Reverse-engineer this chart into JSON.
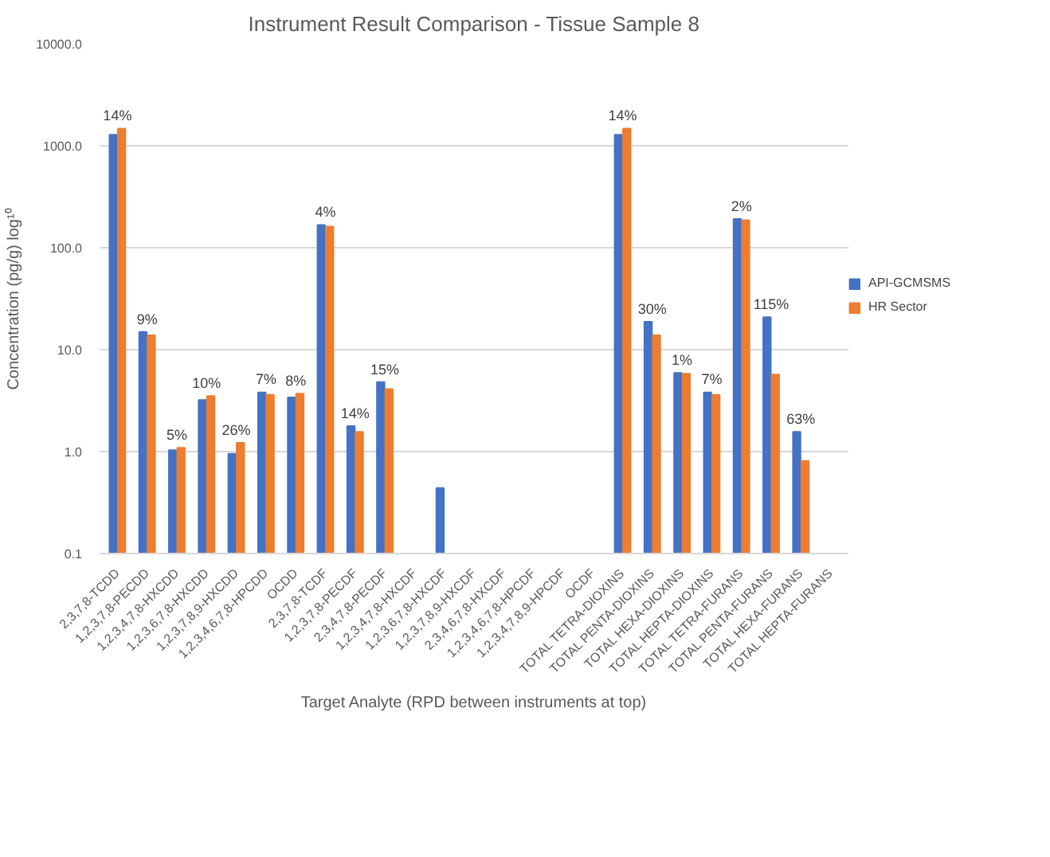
{
  "chart_data": {
    "type": "bar",
    "title": "Instrument Result Comparison - Tissue Sample 8",
    "xlabel": "Target Analyte (RPD between instruments at top)",
    "ylabel": "Concentration (pg/g) log¹⁰",
    "categories": [
      "2,3,7,8-TCDD",
      "1,2,3,7,8-PECDD",
      "1,2,3,4,7,8-HXCDD",
      "1,2,3,6,7,8-HXCDD",
      "1,2,3,7,8,9-HXCDD",
      "1,2,3,4,6,7,8-HPCDD",
      "OCDD",
      "2,3,7,8-TCDF",
      "1,2,3,7,8-PECDF",
      "2,3,4,7,8-PECDF",
      "1,2,3,4,7,8-HXCDF",
      "1,2,3,6,7,8-HXCDF",
      "1,2,3,7,8,9-HXCDF",
      "2,3,4,6,7,8-HXCDF",
      "1,2,3,4,6,7,8-HPCDF",
      "1,2,3,4,7,8,9-HPCDF",
      "OCDF",
      "TOTAL TETRA-DIOXINS",
      "TOTAL PENTA-DIOXINS",
      "TOTAL HEXA-DIOXINS",
      "TOTAL HEPTA-DIOXINS",
      "TOTAL TETRA-FURANS",
      "TOTAL PENTA-FURANS",
      "TOTAL HEXA-FURANS",
      "TOTAL HEPTA-FURANS"
    ],
    "series": [
      {
        "name": "API-GCMSMS",
        "color": "#4472c4",
        "values": [
          1280,
          14.9,
          1.03,
          3.2,
          0.95,
          3.8,
          3.4,
          167,
          1.78,
          4.8,
          null,
          0.44,
          null,
          null,
          null,
          null,
          null,
          1280,
          18.8,
          5.9,
          3.8,
          191,
          20.8,
          1.56,
          null
        ]
      },
      {
        "name": "HR Sector",
        "color": "#ed7d31",
        "values": [
          1470,
          13.8,
          1.09,
          3.5,
          1.22,
          3.6,
          3.7,
          161,
          1.56,
          4.1,
          null,
          null,
          null,
          null,
          null,
          null,
          null,
          1470,
          13.8,
          5.8,
          3.6,
          186,
          5.7,
          0.81,
          null
        ]
      }
    ],
    "log": true,
    "ylim": [
      0.1,
      10000
    ],
    "yticks": [
      {
        "value": 0.1,
        "label": "0.1"
      },
      {
        "value": 1,
        "label": "1.0"
      },
      {
        "value": 10,
        "label": "10.0"
      },
      {
        "value": 100,
        "label": "100.0"
      },
      {
        "value": 1000,
        "label": "1000.0"
      },
      {
        "value": 10000,
        "label": "10000.0"
      }
    ],
    "grid": "y",
    "legend": "right",
    "annotations": [
      {
        "text": "14%",
        "x": "2,3,7,8-TCDD",
        "y": 1470
      },
      {
        "text": "9%",
        "x": "1,2,3,7,8-PECDD",
        "y": 14.9
      },
      {
        "text": "5%",
        "x": "1,2,3,4,7,8-HXCDD",
        "y": 1.09
      },
      {
        "text": "10%",
        "x": "1,2,3,6,7,8-HXCDD",
        "y": 3.5
      },
      {
        "text": "26%",
        "x": "1,2,3,7,8,9-HXCDD",
        "y": 1.22
      },
      {
        "text": "7%",
        "x": "1,2,3,4,6,7,8-HPCDD",
        "y": 3.8
      },
      {
        "text": "8%",
        "x": "OCDD",
        "y": 3.7
      },
      {
        "text": "4%",
        "x": "2,3,7,8-TCDF",
        "y": 167
      },
      {
        "text": "14%",
        "x": "1,2,3,7,8-PECDF",
        "y": 1.78
      },
      {
        "text": "15%",
        "x": "2,3,4,7,8-PECDF",
        "y": 4.8
      },
      {
        "text": "14%",
        "x": "TOTAL TETRA-DIOXINS",
        "y": 1470
      },
      {
        "text": "30%",
        "x": "TOTAL PENTA-DIOXINS",
        "y": 18.8
      },
      {
        "text": "1%",
        "x": "TOTAL HEXA-DIOXINS",
        "y": 5.9
      },
      {
        "text": "7%",
        "x": "TOTAL HEPTA-DIOXINS",
        "y": 3.8
      },
      {
        "text": "2%",
        "x": "TOTAL TETRA-FURANS",
        "y": 191
      },
      {
        "text": "115%",
        "x": "TOTAL PENTA-FURANS",
        "y": 20.8
      },
      {
        "text": "63%",
        "x": "TOTAL HEXA-FURANS",
        "y": 1.56
      }
    ]
  }
}
